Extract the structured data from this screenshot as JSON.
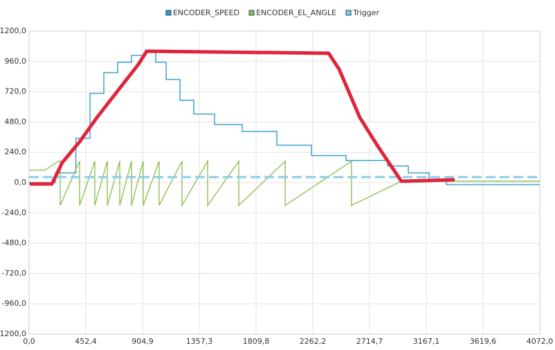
{
  "chart_data": {
    "type": "line",
    "xlim": [
      0,
      4072
    ],
    "xticks": [
      {
        "value": 0,
        "label": "0,0"
      },
      {
        "value": 452.4,
        "label": "452,4"
      },
      {
        "value": 904.9,
        "label": "904,9"
      },
      {
        "value": 1357.3,
        "label": "1357,3"
      },
      {
        "value": 1809.8,
        "label": "1809,8"
      },
      {
        "value": 2262.2,
        "label": "2262,2"
      },
      {
        "value": 2714.7,
        "label": "2714,7"
      },
      {
        "value": 3167.1,
        "label": "3167,1"
      },
      {
        "value": 3619.6,
        "label": "3619,6"
      },
      {
        "value": 4072,
        "label": "4072,0"
      }
    ],
    "ylim": [
      -1200,
      1200
    ],
    "yticks": [
      {
        "value": 1200,
        "label": "1200,0"
      },
      {
        "value": 960,
        "label": "960,0"
      },
      {
        "value": 720,
        "label": "720,0"
      },
      {
        "value": 480,
        "label": "480,0"
      },
      {
        "value": 240,
        "label": "240,0"
      },
      {
        "value": 0,
        "label": "0,0"
      },
      {
        "value": -240,
        "label": "-240,0"
      },
      {
        "value": -480,
        "label": "-480,0"
      },
      {
        "value": -720,
        "label": "-720,0"
      },
      {
        "value": -960,
        "label": "-960,0"
      },
      {
        "value": -1200,
        "label": "-1200,0"
      }
    ],
    "grid": true,
    "series": [
      {
        "name": "ENCODER_SPEED",
        "color": "#2f9acb",
        "step": true,
        "x": [
          0,
          210,
          373,
          486,
          596,
          707,
          817,
          927,
          1010,
          1093,
          1203,
          1313,
          1479,
          1700,
          1976,
          2252,
          2528,
          2859,
          3024,
          3190,
          3328,
          4072
        ],
        "values": [
          0,
          77,
          351,
          707,
          871,
          953,
          1008,
          1047,
          953,
          817,
          652,
          543,
          460,
          405,
          296,
          214,
          175,
          132,
          77,
          11,
          -16,
          -16
        ]
      },
      {
        "name": "ENCODER_EL_ANGLE",
        "color": "#8dc153",
        "x": [
          0,
          127,
          237,
          248,
          248,
          403,
          403,
          524,
          524,
          624,
          624,
          723,
          723,
          817,
          817,
          910,
          910,
          1037,
          1037,
          1219,
          1219,
          1424,
          1424,
          1672,
          1672,
          2042,
          2042,
          2571,
          2571,
          2969,
          4072
        ],
        "values": [
          99,
          99,
          170,
          170,
          -181,
          170,
          -181,
          170,
          -181,
          170,
          -181,
          170,
          -181,
          170,
          -181,
          170,
          -181,
          170,
          -181,
          170,
          -181,
          170,
          -181,
          170,
          -181,
          170,
          -181,
          170,
          -181,
          11,
          11
        ]
      },
      {
        "name": "Trigger",
        "color": "#87cde8",
        "dashed": true,
        "x": [
          0,
          4072
        ],
        "values": [
          44,
          44
        ]
      }
    ]
  }
}
